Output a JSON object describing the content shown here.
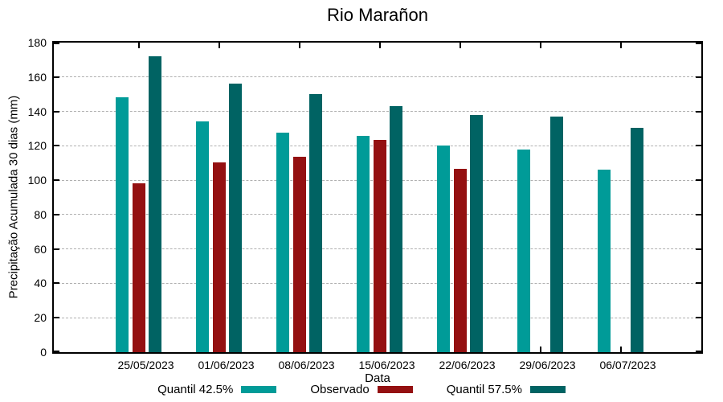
{
  "chart_data": {
    "type": "bar",
    "title": "Rio Marañon",
    "xlabel": "Data",
    "ylabel": "Precipitação Acumulada 30 dias (mm)",
    "ylim": [
      0,
      180
    ],
    "ytick_step": 20,
    "grid": true,
    "legend_position": "bottom",
    "categories": [
      "25/05/2023",
      "01/06/2023",
      "08/06/2023",
      "15/06/2023",
      "22/06/2023",
      "29/06/2023",
      "06/07/2023"
    ],
    "series": [
      {
        "name": "Quantil 42.5%",
        "color": "#009b98",
        "values": [
          148,
          134,
          127.5,
          126,
          120,
          118,
          106
        ]
      },
      {
        "name": "Observado",
        "color": "#941011",
        "values": [
          98,
          110.5,
          113.5,
          123.5,
          106.5,
          null,
          null
        ]
      },
      {
        "name": "Quantil 57.5%",
        "color": "#006363",
        "values": [
          172,
          156,
          150,
          143,
          138,
          137,
          130.5
        ]
      }
    ]
  },
  "colors": {
    "axis": "#000000",
    "grid": "#b0b0b0",
    "background": "#ffffff",
    "text": "#000000"
  }
}
